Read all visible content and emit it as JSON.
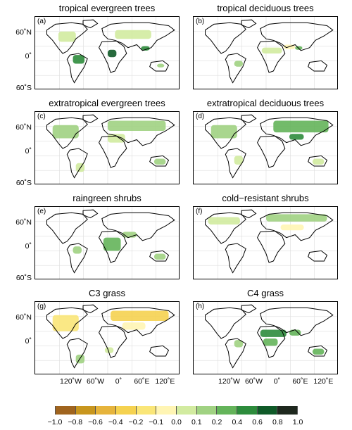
{
  "panels": [
    {
      "label": "(a)",
      "title": "tropical evergreen trees",
      "fill": "tropical_evergreen"
    },
    {
      "label": "(b)",
      "title": "tropical deciduous trees",
      "fill": "tropical_deciduous"
    },
    {
      "label": "(c)",
      "title": "extratropical evergreen trees",
      "fill": "extra_evergreen"
    },
    {
      "label": "(d)",
      "title": "extratropical deciduous trees",
      "fill": "extra_deciduous"
    },
    {
      "label": "(e)",
      "title": "raingreen shrubs",
      "fill": "raingreen"
    },
    {
      "label": "(f)",
      "title": "cold−resistant shrubs",
      "fill": "cold_resistant"
    },
    {
      "label": "(g)",
      "title": "C3 grass",
      "fill": "c3"
    },
    {
      "label": "(h)",
      "title": "C4 grass",
      "fill": "c4"
    }
  ],
  "lat_ticks": [
    "60˚N",
    "0˚",
    "60˚S"
  ],
  "bottom_lat_ticks": [
    "60˚N",
    "0˚"
  ],
  "lon_ticks": [
    "120˚W",
    "60˚W",
    "0˚",
    "60˚E",
    "120˚E"
  ],
  "colorbar": {
    "ticks": [
      "−1.0",
      "−0.8",
      "−0.6",
      "−0.4",
      "−0.2",
      "−0.1",
      "0.0",
      "0.1",
      "0.2",
      "0.4",
      "0.6",
      "0.8",
      "1.0"
    ],
    "colors": [
      "#a0641e",
      "#c8961e",
      "#e6b43c",
      "#f5d250",
      "#fae678",
      "#fff5b4",
      "#d2eba0",
      "#a0d282",
      "#64b45a",
      "#2d8c3c",
      "#0f5a28",
      "#1e281e"
    ]
  }
}
